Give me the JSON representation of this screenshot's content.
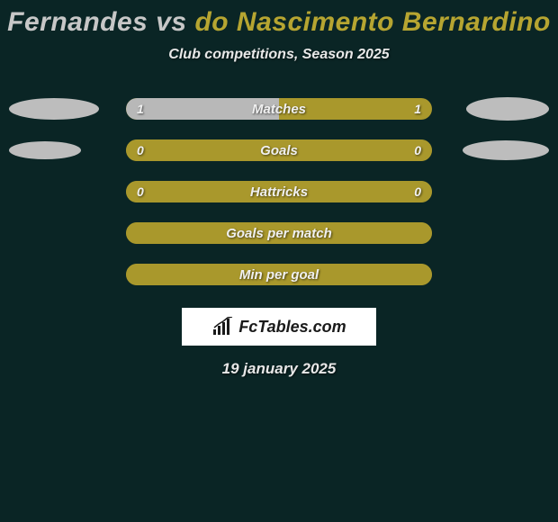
{
  "title": {
    "left_name": "Fernandes",
    "vs": "vs",
    "right_name": "do Nascimento Bernardino",
    "left_color": "#c7c7c7",
    "right_color": "#b6a531"
  },
  "subtitle": "Club competitions, Season 2025",
  "background_color": "#0a2525",
  "stats": [
    {
      "label": "Matches",
      "left_value": "1",
      "right_value": "1",
      "show_values": true,
      "track_color": "#a9982c",
      "left_fill_color": "#b8b8b8",
      "fill_mode": "half",
      "left_ellipse": {
        "w": 100,
        "h": 24,
        "color": "#bdbdbd"
      },
      "right_ellipse": {
        "w": 92,
        "h": 26,
        "color": "#bdbdbd"
      }
    },
    {
      "label": "Goals",
      "left_value": "0",
      "right_value": "0",
      "show_values": true,
      "track_color": "#a9982c",
      "left_fill_color": "#a9982c",
      "fill_mode": "full",
      "left_ellipse": {
        "w": 80,
        "h": 20,
        "color": "#bdbdbd"
      },
      "right_ellipse": {
        "w": 96,
        "h": 22,
        "color": "#bdbdbd"
      }
    },
    {
      "label": "Hattricks",
      "left_value": "0",
      "right_value": "0",
      "show_values": true,
      "track_color": "#a9982c",
      "left_fill_color": "#a9982c",
      "fill_mode": "full",
      "left_ellipse": null,
      "right_ellipse": null
    },
    {
      "label": "Goals per match",
      "left_value": "",
      "right_value": "",
      "show_values": false,
      "track_color": "#a9982c",
      "left_fill_color": "#a9982c",
      "fill_mode": "full",
      "left_ellipse": null,
      "right_ellipse": null
    },
    {
      "label": "Min per goal",
      "left_value": "",
      "right_value": "",
      "show_values": false,
      "track_color": "#a9982c",
      "left_fill_color": "#a9982c",
      "fill_mode": "full",
      "left_ellipse": null,
      "right_ellipse": null
    }
  ],
  "logo": {
    "text": "FcTables.com",
    "icon_color": "#1a1a1a",
    "box_bg": "#ffffff"
  },
  "date": "19 january 2025"
}
